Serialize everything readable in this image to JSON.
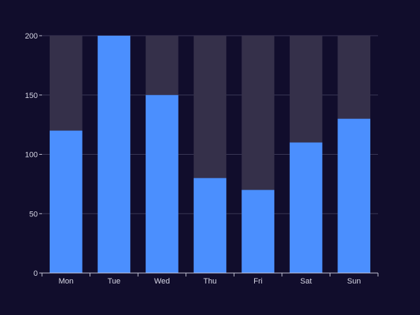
{
  "chart_data": {
    "type": "bar",
    "categories": [
      "Mon",
      "Tue",
      "Wed",
      "Thu",
      "Fri",
      "Sat",
      "Sun"
    ],
    "values": [
      120,
      200,
      150,
      80,
      70,
      110,
      130
    ],
    "background_max": 200,
    "ylim": [
      0,
      200
    ],
    "yticks": [
      0,
      50,
      100,
      150,
      200
    ],
    "grid": true,
    "colors": {
      "bar": "#4b8ffe",
      "bar_background": "#35304a",
      "grid": "#3b3857",
      "axis": "#c8c8d8",
      "text": "#d8d8e6",
      "page_background": "#110d2c"
    }
  }
}
